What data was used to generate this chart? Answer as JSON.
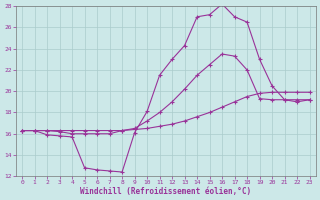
{
  "xlabel": "Windchill (Refroidissement éolien,°C)",
  "xlim": [
    -0.5,
    23.5
  ],
  "ylim": [
    12,
    28
  ],
  "xticks": [
    0,
    1,
    2,
    3,
    4,
    5,
    6,
    7,
    8,
    9,
    10,
    11,
    12,
    13,
    14,
    15,
    16,
    17,
    18,
    19,
    20,
    21,
    22,
    23
  ],
  "yticks": [
    12,
    14,
    16,
    18,
    20,
    22,
    24,
    26,
    28
  ],
  "bg_color": "#cce8e8",
  "grid_color": "#aacccc",
  "line_color": "#993399",
  "line1_x": [
    0,
    1,
    2,
    3,
    4,
    5,
    6,
    7,
    8,
    9,
    10,
    11,
    12,
    13,
    14,
    15,
    16,
    17,
    18,
    19,
    20,
    21,
    22,
    23
  ],
  "line1_y": [
    16.3,
    16.3,
    15.9,
    15.8,
    15.7,
    12.8,
    12.6,
    12.5,
    12.4,
    16.1,
    18.1,
    21.5,
    23.0,
    24.3,
    27.0,
    27.2,
    28.2,
    27.0,
    26.5,
    23.0,
    20.5,
    19.2,
    19.0,
    19.2
  ],
  "line2_x": [
    0,
    1,
    2,
    3,
    4,
    5,
    6,
    7,
    8,
    9,
    10,
    11,
    12,
    13,
    14,
    15,
    16,
    17,
    18,
    19,
    20,
    21,
    22,
    23
  ],
  "line2_y": [
    16.3,
    16.3,
    16.3,
    16.2,
    16.0,
    16.0,
    16.0,
    16.0,
    16.3,
    16.5,
    17.2,
    18.0,
    19.0,
    20.2,
    21.5,
    22.5,
    23.5,
    23.3,
    22.0,
    19.3,
    19.2,
    19.2,
    19.2,
    19.2
  ],
  "line3_x": [
    0,
    1,
    2,
    3,
    4,
    5,
    6,
    7,
    8,
    9,
    10,
    11,
    12,
    13,
    14,
    15,
    16,
    17,
    18,
    19,
    20,
    21,
    22,
    23
  ],
  "line3_y": [
    16.3,
    16.3,
    16.3,
    16.3,
    16.3,
    16.3,
    16.3,
    16.3,
    16.3,
    16.4,
    16.5,
    16.7,
    16.9,
    17.2,
    17.6,
    18.0,
    18.5,
    19.0,
    19.5,
    19.8,
    19.9,
    19.9,
    19.9,
    19.9
  ],
  "markersize": 2.5
}
